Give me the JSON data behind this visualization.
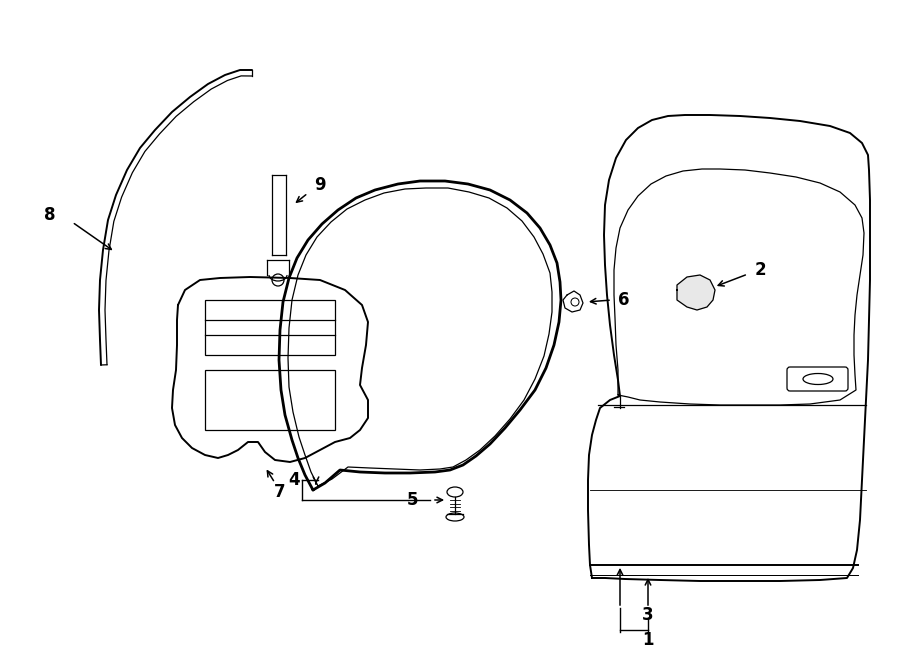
{
  "bg_color": "#ffffff",
  "line_color": "#000000",
  "lw": 1.4,
  "lw_thin": 0.9,
  "lw_thick": 2.0,
  "fig_width": 9.0,
  "fig_height": 6.61,
  "font_size": 11
}
